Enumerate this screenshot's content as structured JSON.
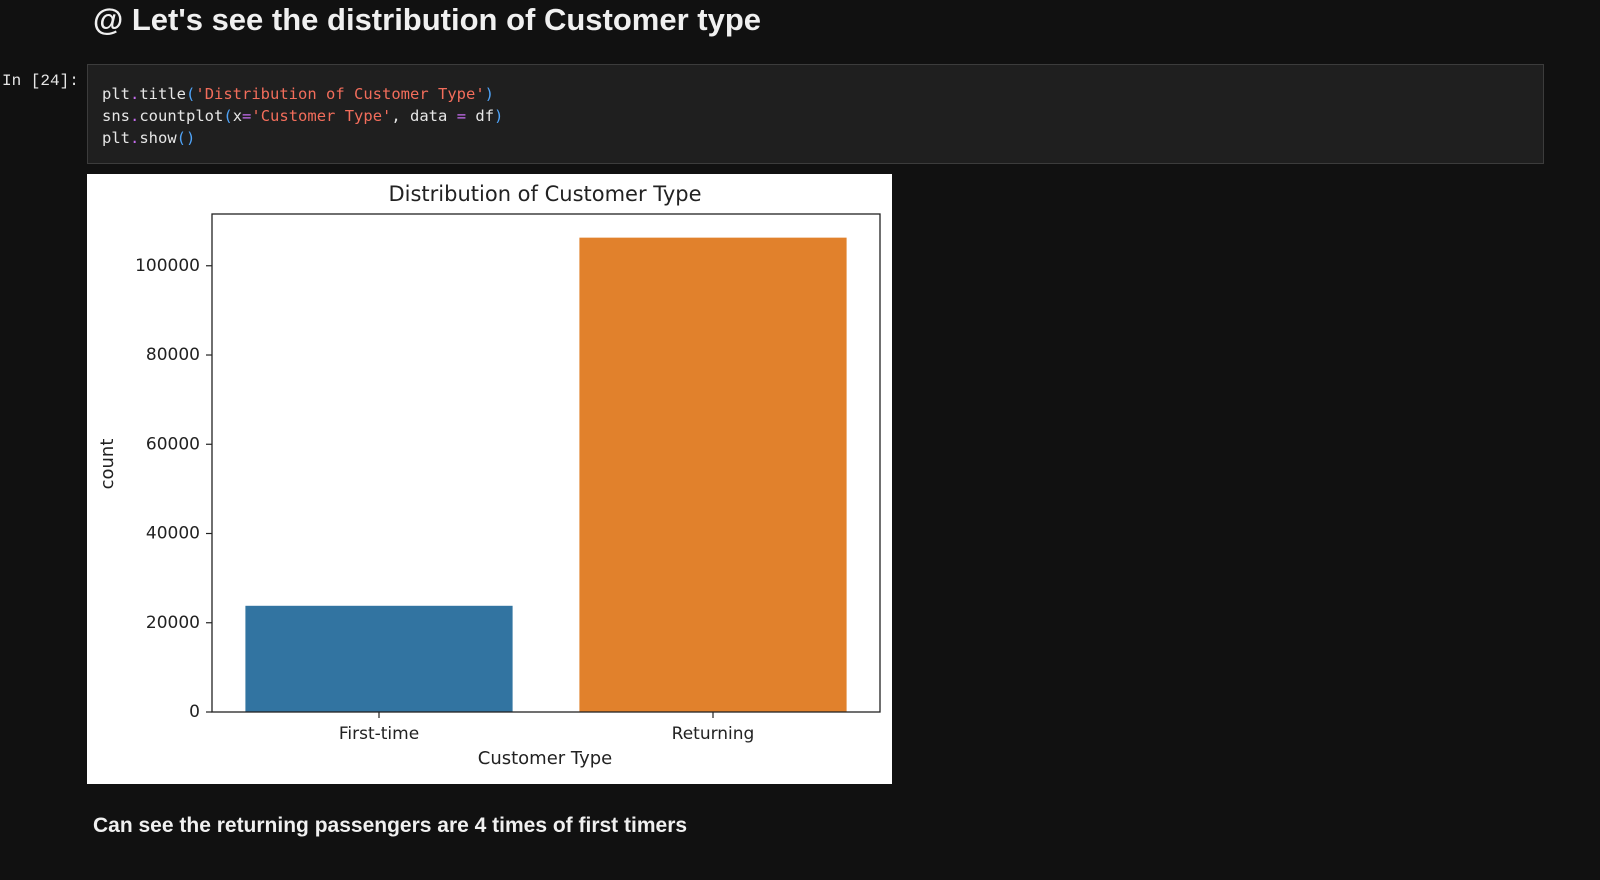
{
  "header": {
    "title": "@ Let's see the distribution of Customer type"
  },
  "cell": {
    "prompt": "In [24]:"
  },
  "code": {
    "lines": [
      [
        "plt",
        ".",
        "title",
        "(",
        "'Distribution of Customer Type'",
        ")"
      ],
      [
        "sns",
        ".",
        "countplot",
        "(",
        "x",
        "=",
        "'Customer Type'",
        ", data ",
        "=",
        " df",
        ")"
      ],
      [
        "plt",
        ".",
        "show",
        "()"
      ]
    ]
  },
  "chart_data": {
    "type": "bar",
    "title": "Distribution of Customer Type",
    "x_label": "Customer Type",
    "y_label": "count",
    "categories": [
      "First-time",
      "Returning"
    ],
    "values": [
      23800,
      106300
    ],
    "colors": [
      "#3274a1",
      "#e1812c"
    ],
    "ylim": [
      0,
      111600
    ],
    "yticks": [
      0,
      20000,
      40000,
      60000,
      80000,
      100000
    ],
    "grid": false
  },
  "markdown": {
    "text": "Can see the returning passengers are 4 times of first timers"
  }
}
